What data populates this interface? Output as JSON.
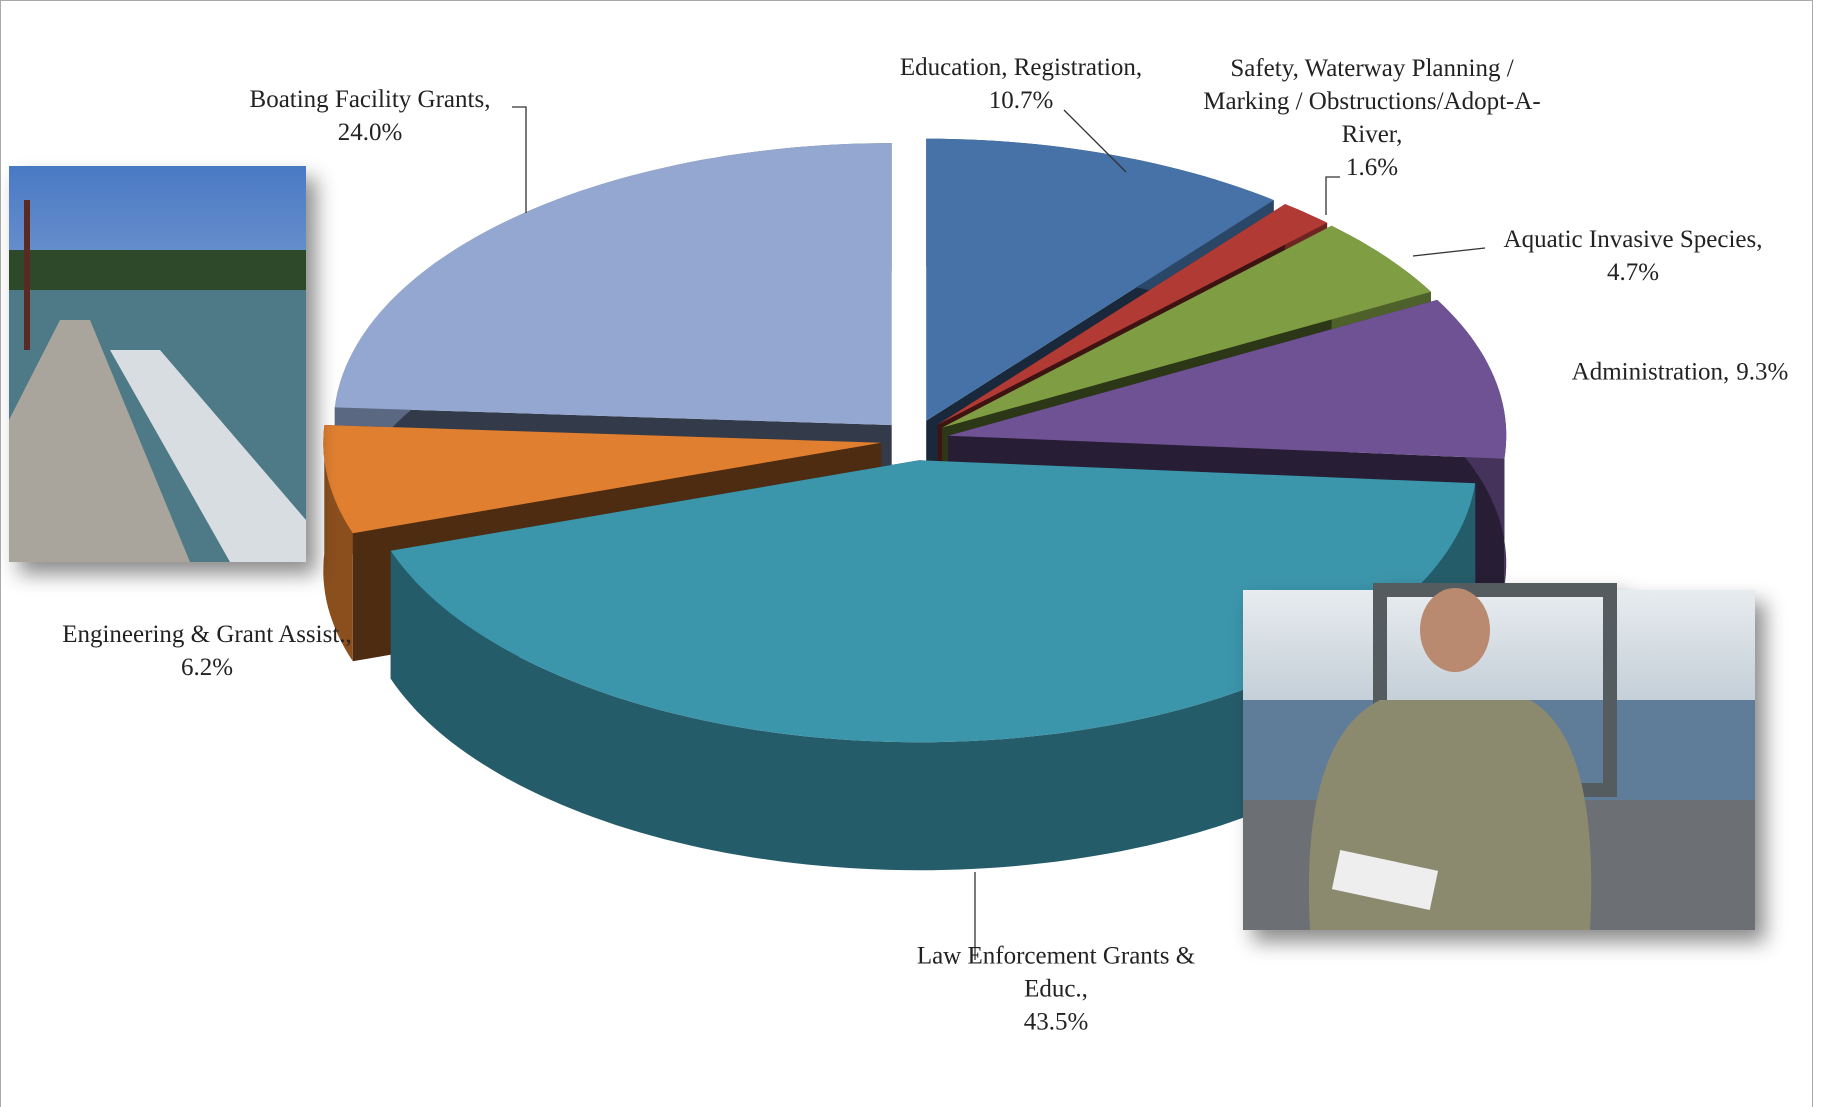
{
  "chart_data": {
    "type": "pie",
    "categories": [
      "Education, Registration,",
      "Safety, Waterway Planning / Marking / Obstructions/Adopt-A-River,",
      "Aquatic Invasive Species,",
      "Administration,",
      "Law Enforcement Grants & Educ.,",
      "Engineering & Grant Assist.,",
      "Boating Facility Grants,"
    ],
    "values": [
      10.7,
      1.6,
      4.7,
      9.3,
      43.5,
      6.2,
      24.0
    ],
    "value_labels": [
      "10.7%",
      "1.6%",
      "4.7%",
      "9.3%",
      "43.5%",
      "6.2%",
      "24.0%"
    ],
    "colors": [
      "#4672a8",
      "#b23a35",
      "#7f9d43",
      "#6f5294",
      "#3b95ab",
      "#e07f30",
      "#93a7d0"
    ]
  }
}
